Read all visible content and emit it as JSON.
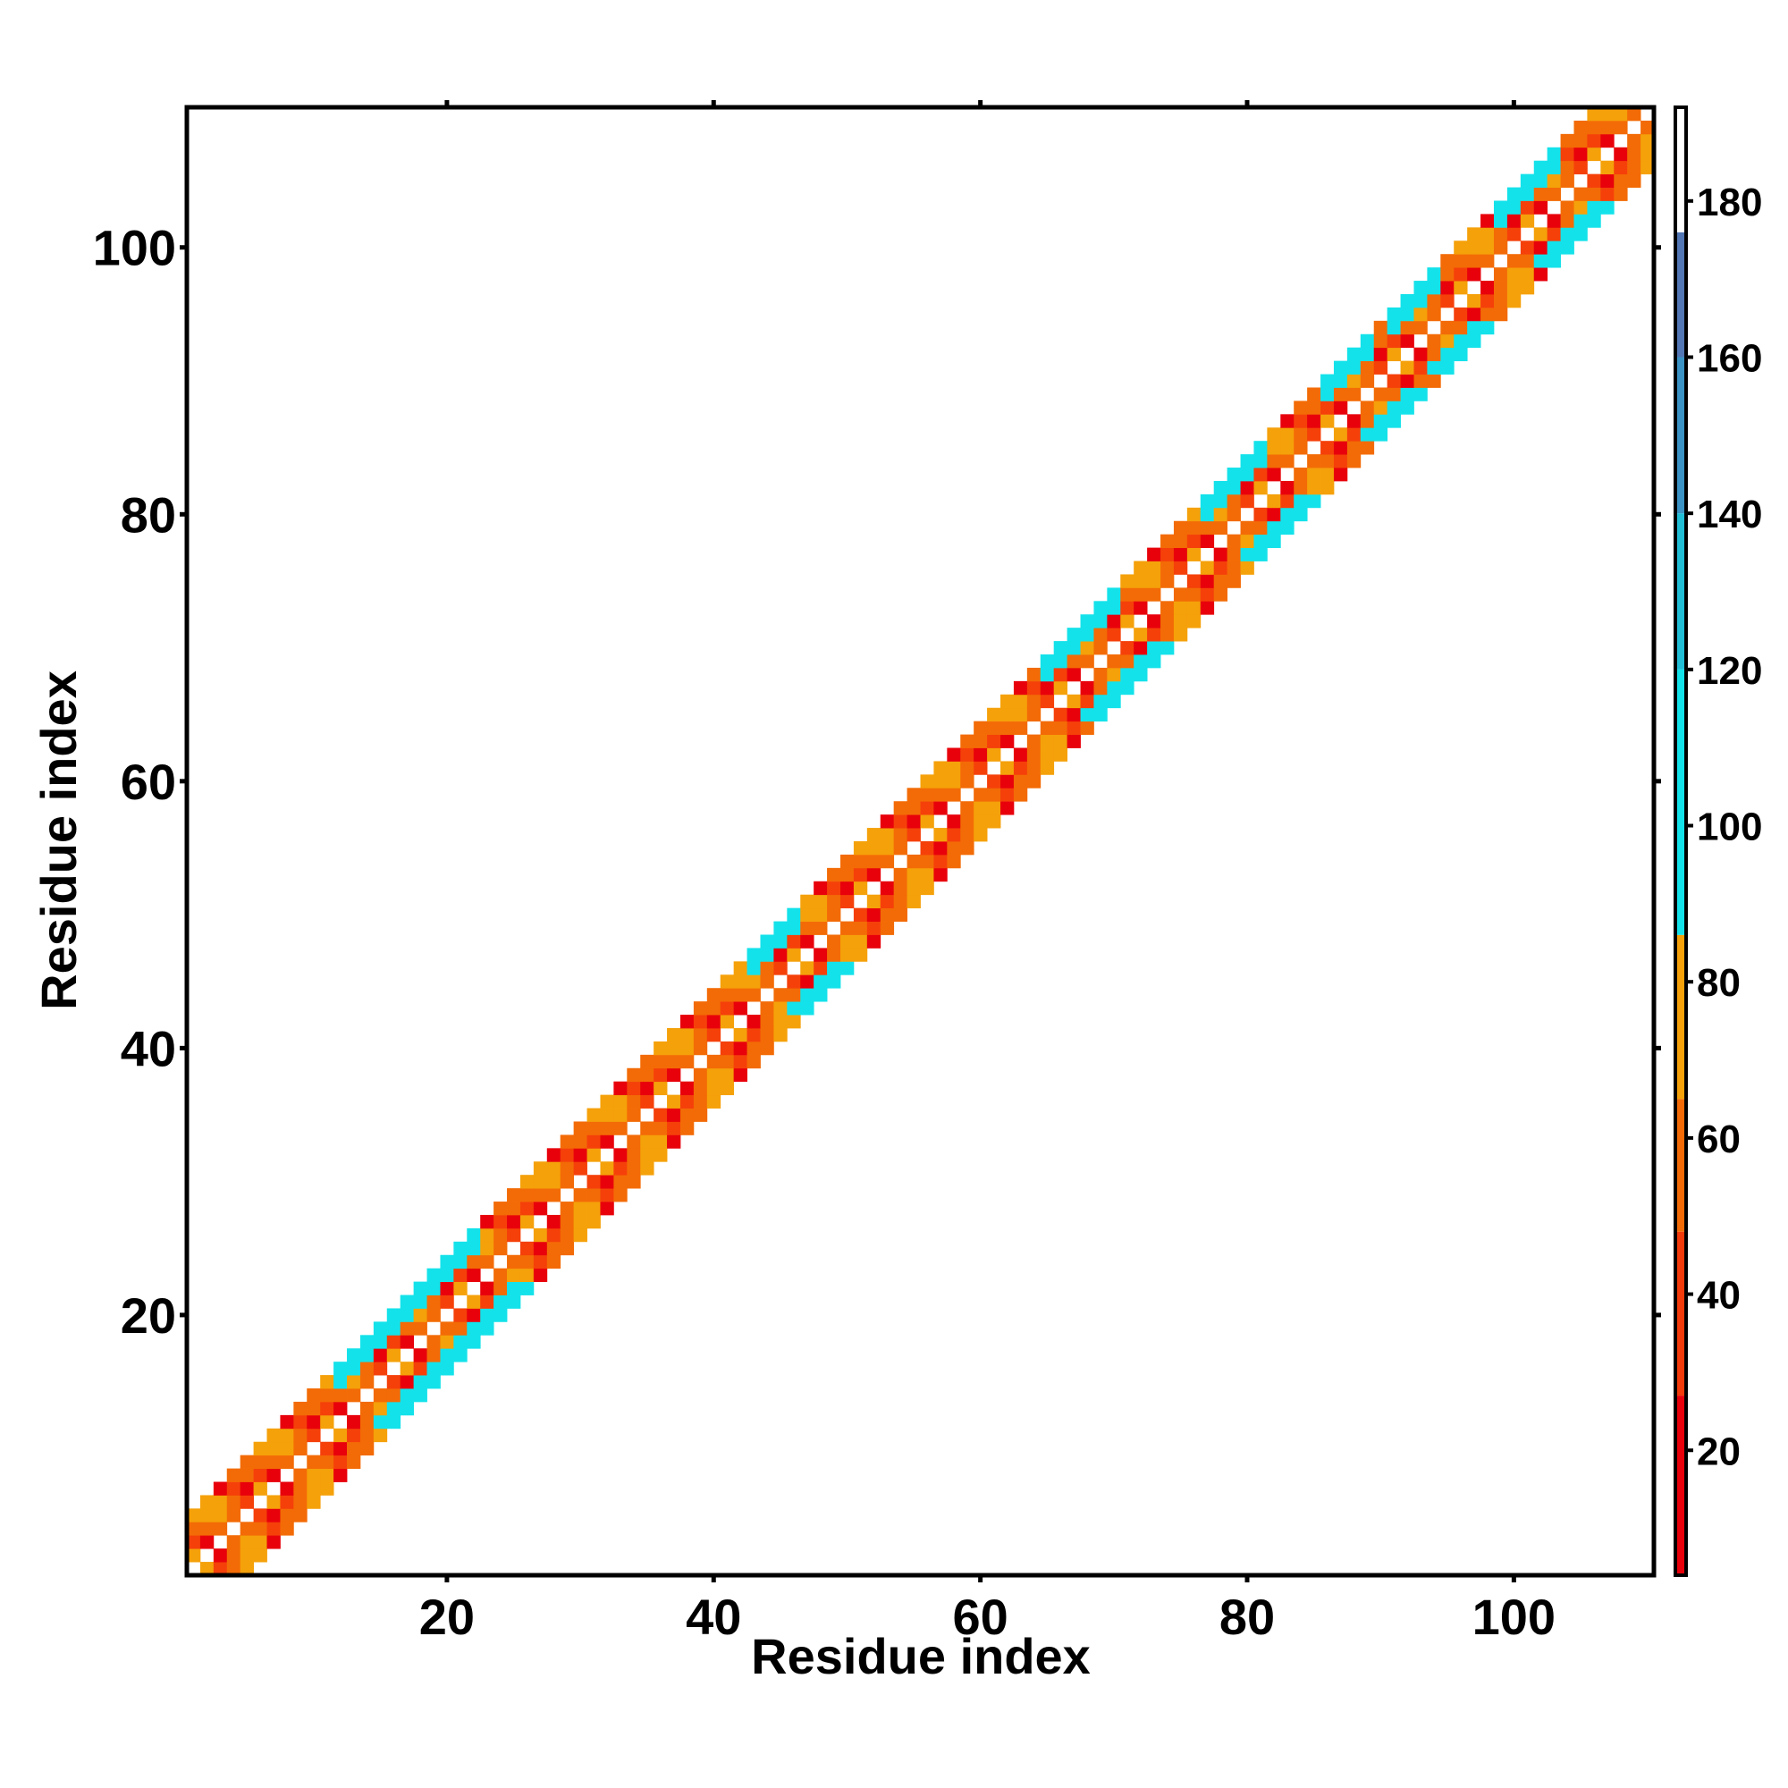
{
  "chart_data": {
    "type": "heatmap",
    "title": "",
    "xlabel": "Residue index",
    "ylabel": "Residue index",
    "xlim": [
      0.5,
      110.5
    ],
    "ylim": [
      0.5,
      110.5
    ],
    "x_ticks": [
      20,
      40,
      60,
      80,
      100
    ],
    "y_ticks": [
      20,
      40,
      60,
      80,
      100
    ],
    "n_residues": 110,
    "band_offsets": [
      1,
      2,
      3,
      4
    ],
    "colorbar": {
      "range": [
        4,
        192
      ],
      "ticks": [
        20,
        40,
        60,
        80,
        100,
        120,
        140,
        160,
        180
      ],
      "segments": [
        {
          "from": 4,
          "to": 27,
          "color": "#e8000b"
        },
        {
          "from": 27,
          "to": 48,
          "color": "#f23a0a"
        },
        {
          "from": 48,
          "to": 65,
          "color": "#f36b06"
        },
        {
          "from": 65,
          "to": 86,
          "color": "#f5a10a"
        },
        {
          "from": 86,
          "to": 120,
          "color": "#14e2ea"
        },
        {
          "from": 120,
          "to": 140,
          "color": "#21bed6"
        },
        {
          "from": 140,
          "to": 160,
          "color": "#3a93c4"
        },
        {
          "from": 160,
          "to": 176,
          "color": "#5277b4"
        },
        {
          "from": 176,
          "to": 192,
          "color": "#ffffff"
        }
      ]
    },
    "palette": {
      "red": "#e8000b",
      "orange_red": "#f5400a",
      "orange": "#f36b06",
      "amber": "#f5a10a",
      "cyan": "#14e2ea"
    },
    "helix_regions": [
      [
        12,
        22
      ],
      [
        43,
        46
      ],
      [
        65,
        70
      ],
      [
        77,
        81
      ],
      [
        86,
        89
      ],
      [
        91,
        94
      ],
      [
        99,
        103
      ]
    ],
    "grid": false,
    "legend": "colorbar-right"
  }
}
